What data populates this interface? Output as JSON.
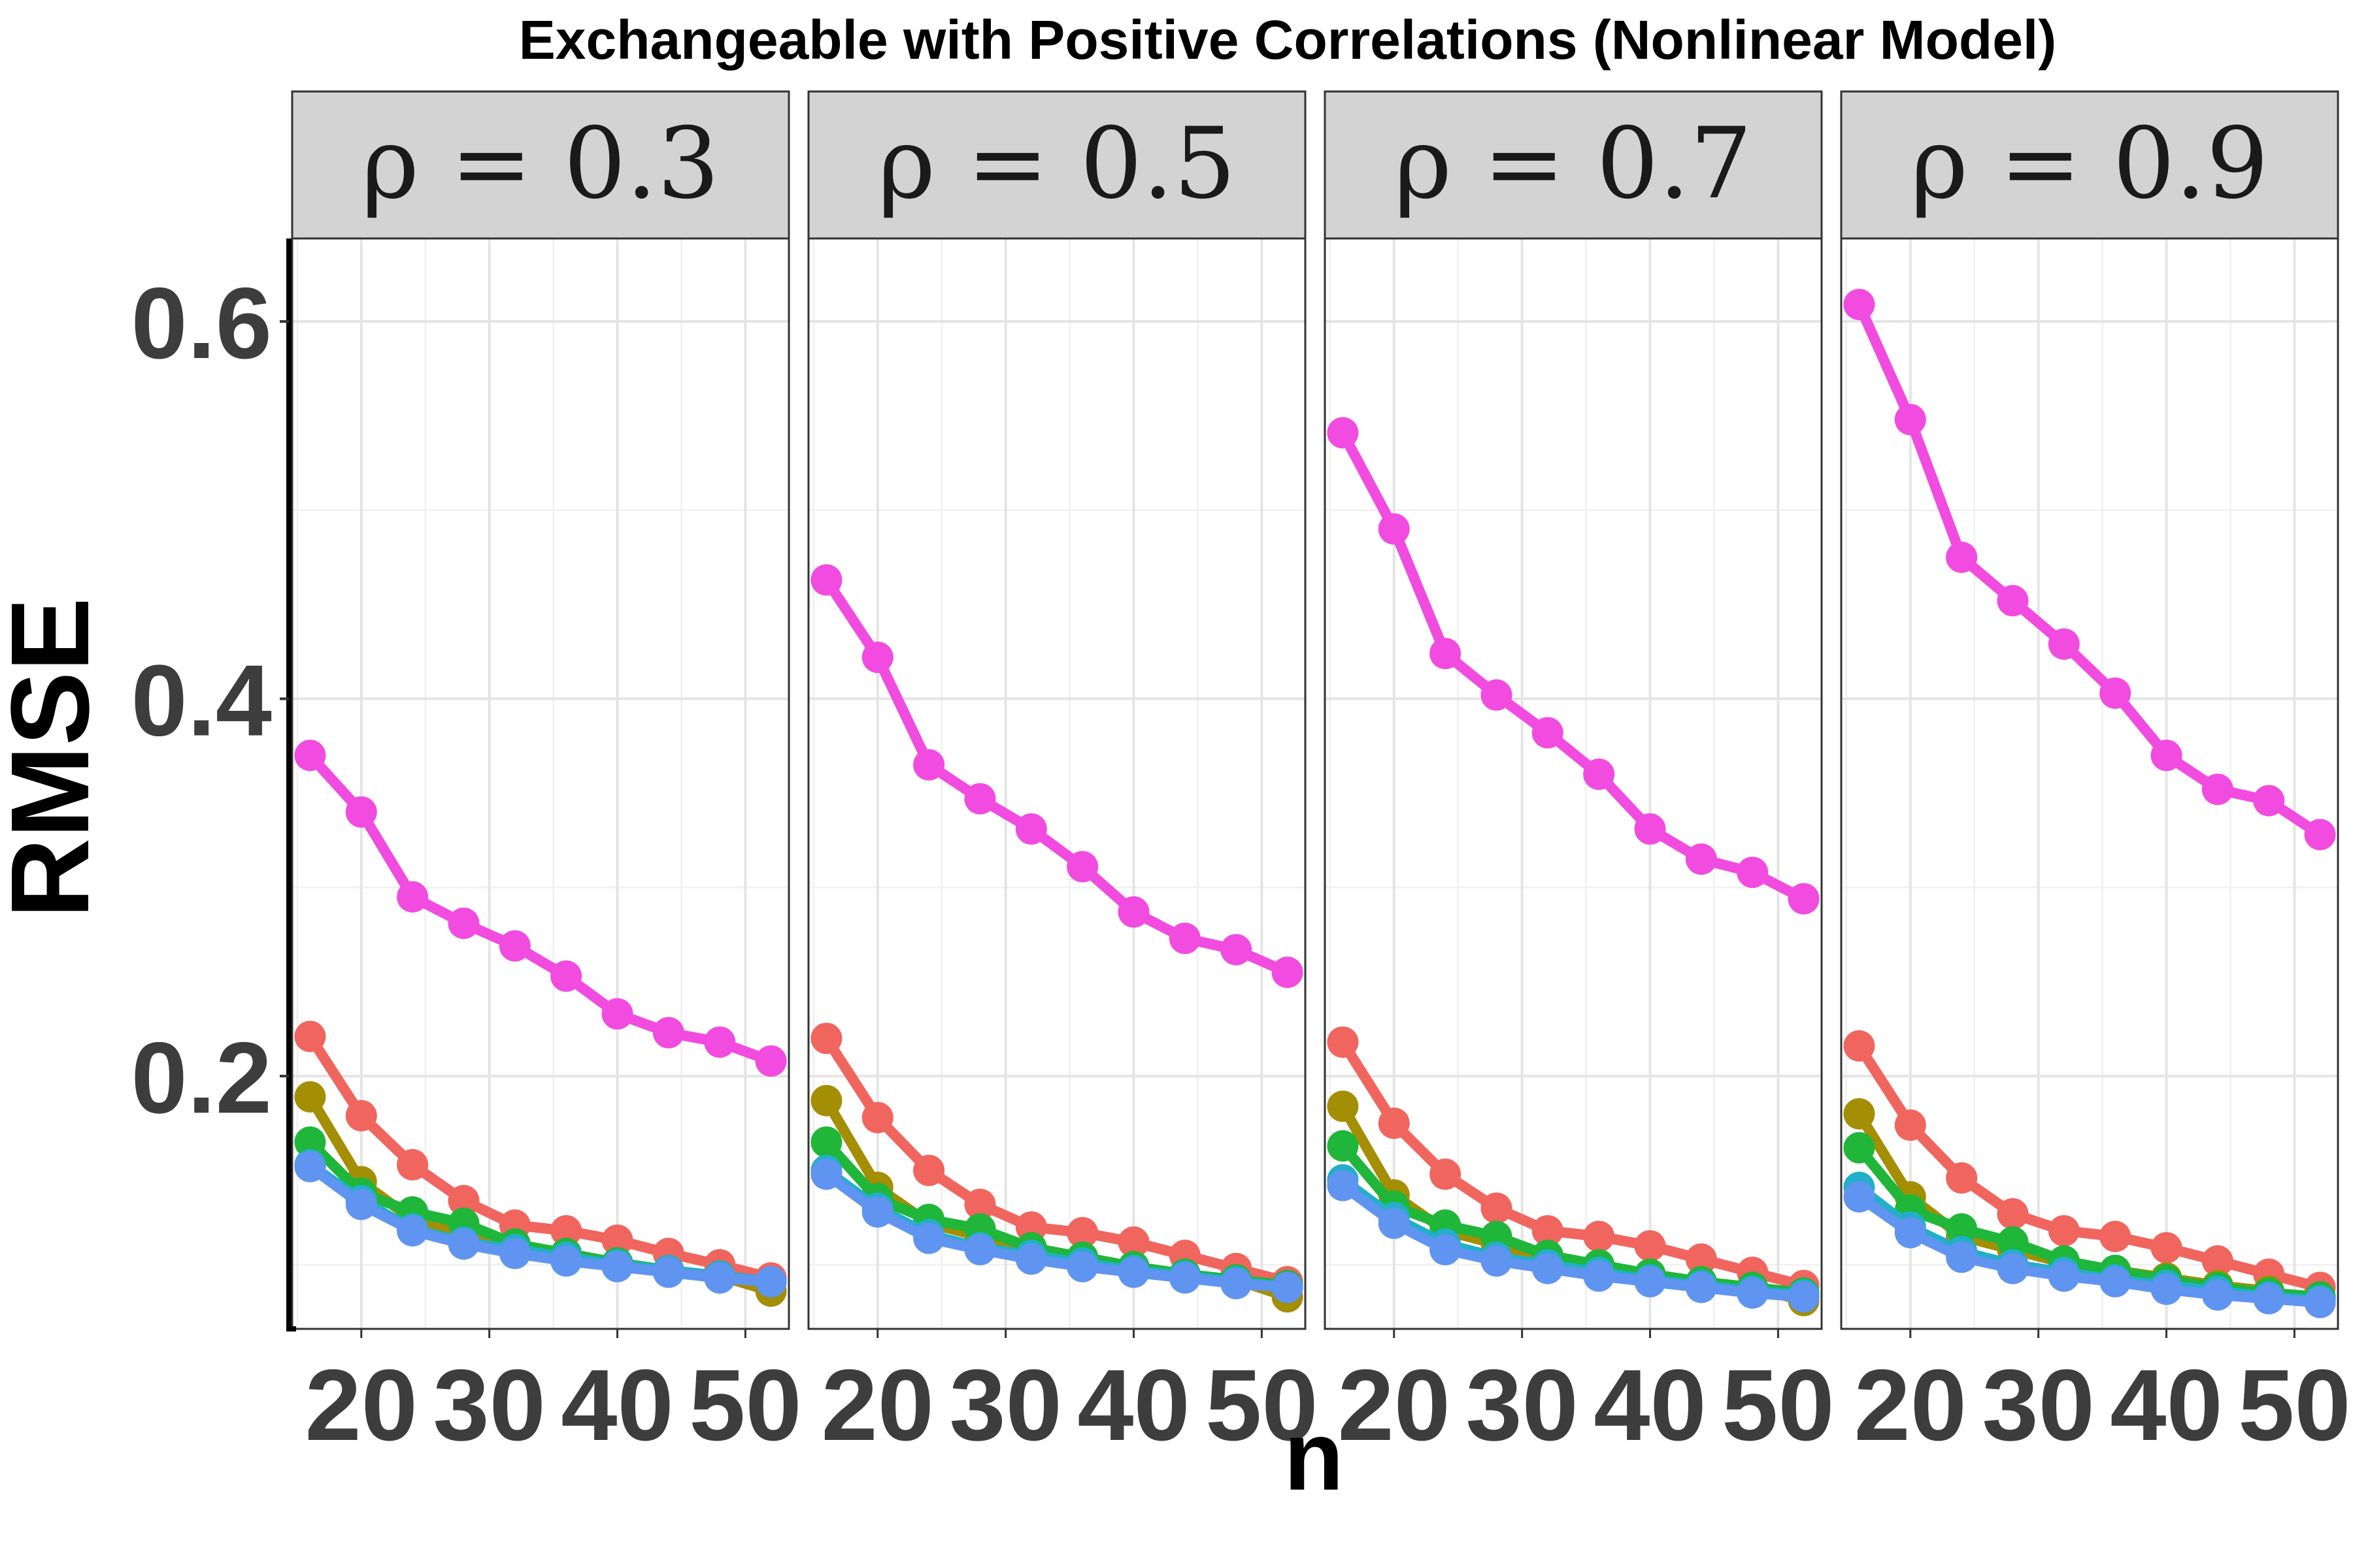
{
  "chart_data": {
    "type": "line",
    "title": "Exchangeable with Positive Correlations (Nonlinear Model)",
    "xlabel": "n",
    "ylabel": "RMSE",
    "x": [
      16,
      20,
      24,
      28,
      32,
      36,
      40,
      44,
      48,
      52
    ],
    "xticks": [
      20,
      30,
      40,
      50
    ],
    "xtick_labels": [
      "20",
      "30",
      "40",
      "50"
    ],
    "xlim": [
      14.6,
      53.4
    ],
    "yticks": [
      0.2,
      0.4,
      0.6
    ],
    "ytick_labels": [
      "0.2",
      "0.4",
      "0.6"
    ],
    "ylim": [
      0.066,
      0.644
    ],
    "legend": "none",
    "panels": [
      {
        "label": "ρ = 0.3",
        "series": [
          {
            "color": "#F14BE0",
            "values": [
              0.37,
              0.34,
              0.295,
              0.281,
              0.269,
              0.253,
              0.233,
              0.223,
              0.218,
              0.208
            ]
          },
          {
            "color": "#F0655E",
            "values": [
              0.221,
              0.179,
              0.153,
              0.134,
              0.121,
              0.118,
              0.113,
              0.106,
              0.1,
              0.093
            ]
          },
          {
            "color": "#A48E04",
            "values": [
              0.189,
              0.144,
              0.124,
              0.117,
              0.109,
              0.105,
              0.101,
              0.097,
              0.094,
              0.086
            ]
          },
          {
            "color": "#1FB63A",
            "values": [
              0.165,
              0.138,
              0.128,
              0.122,
              0.111,
              0.106,
              0.101,
              0.097,
              0.094,
              0.091
            ]
          },
          {
            "color": "#22AFC8",
            "values": [
              0.153,
              0.134,
              0.119,
              0.112,
              0.108,
              0.104,
              0.1,
              0.097,
              0.094,
              0.091
            ]
          },
          {
            "color": "#5F94F0",
            "values": [
              0.152,
              0.132,
              0.118,
              0.111,
              0.106,
              0.102,
              0.099,
              0.096,
              0.093,
              0.091
            ]
          }
        ]
      },
      {
        "label": "ρ = 0.5",
        "series": [
          {
            "color": "#F14BE0",
            "values": [
              0.463,
              0.422,
              0.365,
              0.347,
              0.331,
              0.311,
              0.287,
              0.273,
              0.267,
              0.255
            ]
          },
          {
            "color": "#F0655E",
            "values": [
              0.22,
              0.178,
              0.15,
              0.132,
              0.12,
              0.117,
              0.112,
              0.105,
              0.098,
              0.091
            ]
          },
          {
            "color": "#A48E04",
            "values": [
              0.187,
              0.141,
              0.122,
              0.115,
              0.107,
              0.103,
              0.099,
              0.095,
              0.092,
              0.083
            ]
          },
          {
            "color": "#1FB63A",
            "values": [
              0.165,
              0.135,
              0.124,
              0.119,
              0.109,
              0.104,
              0.099,
              0.095,
              0.092,
              0.089
            ]
          },
          {
            "color": "#22AFC8",
            "values": [
              0.15,
              0.13,
              0.116,
              0.109,
              0.105,
              0.101,
              0.097,
              0.094,
              0.091,
              0.088
            ]
          },
          {
            "color": "#5F94F0",
            "values": [
              0.148,
              0.128,
              0.114,
              0.108,
              0.103,
              0.099,
              0.096,
              0.093,
              0.09,
              0.088
            ]
          }
        ]
      },
      {
        "label": "ρ = 0.7",
        "series": [
          {
            "color": "#F14BE0",
            "values": [
              0.541,
              0.49,
              0.424,
              0.402,
              0.382,
              0.36,
              0.331,
              0.315,
              0.308,
              0.294
            ]
          },
          {
            "color": "#F0655E",
            "values": [
              0.218,
              0.175,
              0.148,
              0.13,
              0.118,
              0.115,
              0.11,
              0.103,
              0.096,
              0.089
            ]
          },
          {
            "color": "#A48E04",
            "values": [
              0.184,
              0.137,
              0.118,
              0.111,
              0.103,
              0.099,
              0.095,
              0.091,
              0.088,
              0.081
            ]
          },
          {
            "color": "#1FB63A",
            "values": [
              0.163,
              0.131,
              0.121,
              0.115,
              0.105,
              0.1,
              0.095,
              0.091,
              0.088,
              0.085
            ]
          },
          {
            "color": "#22AFC8",
            "values": [
              0.145,
              0.125,
              0.111,
              0.104,
              0.1,
              0.096,
              0.092,
              0.089,
              0.086,
              0.084
            ]
          },
          {
            "color": "#5F94F0",
            "values": [
              0.142,
              0.122,
              0.108,
              0.102,
              0.098,
              0.094,
              0.091,
              0.088,
              0.085,
              0.083
            ]
          }
        ]
      },
      {
        "label": "ρ = 0.9",
        "series": [
          {
            "color": "#F14BE0",
            "values": [
              0.609,
              0.548,
              0.475,
              0.452,
              0.429,
              0.403,
              0.37,
              0.352,
              0.346,
              0.328
            ]
          },
          {
            "color": "#F0655E",
            "values": [
              0.216,
              0.174,
              0.146,
              0.127,
              0.118,
              0.115,
              0.109,
              0.102,
              0.095,
              0.088
            ]
          },
          {
            "color": "#A48E04",
            "values": [
              0.18,
              0.136,
              0.115,
              0.108,
              0.101,
              0.097,
              0.093,
              0.089,
              0.086,
              0.08
            ]
          },
          {
            "color": "#1FB63A",
            "values": [
              0.162,
              0.129,
              0.119,
              0.112,
              0.102,
              0.097,
              0.092,
              0.088,
              0.085,
              0.083
            ]
          },
          {
            "color": "#22AFC8",
            "values": [
              0.141,
              0.12,
              0.107,
              0.1,
              0.096,
              0.092,
              0.089,
              0.086,
              0.083,
              0.081
            ]
          },
          {
            "color": "#5F94F0",
            "values": [
              0.136,
              0.117,
              0.104,
              0.098,
              0.094,
              0.091,
              0.087,
              0.084,
              0.082,
              0.08
            ]
          }
        ]
      }
    ]
  }
}
